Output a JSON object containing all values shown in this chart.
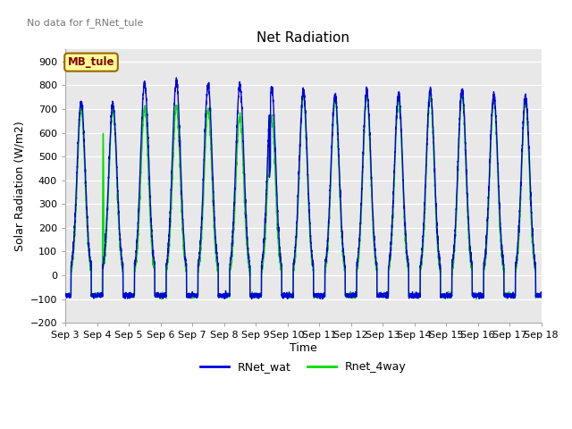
{
  "title": "Net Radiation",
  "ylabel": "Solar Radiation (W/m2)",
  "xlabel": "Time",
  "no_data_text": "No data for f_RNet_tule",
  "legend_box_text": "MB_tule",
  "ylim": [
    -200,
    950
  ],
  "yticks": [
    -200,
    -100,
    0,
    100,
    200,
    300,
    400,
    500,
    600,
    700,
    800,
    900
  ],
  "xlim": [
    0,
    15
  ],
  "xtick_labels": [
    "Sep 3",
    "Sep 4",
    "Sep 5",
    "Sep 6",
    "Sep 7",
    "Sep 8",
    "Sep 9",
    "Sep 10",
    "Sep 11",
    "Sep 12",
    "Sep 13",
    "Sep 14",
    "Sep 15",
    "Sep 16",
    "Sep 17",
    "Sep 18"
  ],
  "line1_color": "#0000dd",
  "line2_color": "#00dd00",
  "bg_color": "#e8e8e8",
  "legend_box_bg": "#ffff99",
  "legend_box_edge": "#996600",
  "blue_peaks": [
    730,
    720,
    810,
    815,
    800,
    800,
    790,
    775,
    760,
    775,
    760,
    780,
    780,
    760,
    750
  ],
  "green_peaks": [
    700,
    700,
    700,
    710,
    700,
    670,
    665,
    755,
    740,
    760,
    740,
    760,
    760,
    740,
    730
  ],
  "night_val": -85,
  "figsize": [
    6.4,
    4.8
  ],
  "dpi": 100
}
